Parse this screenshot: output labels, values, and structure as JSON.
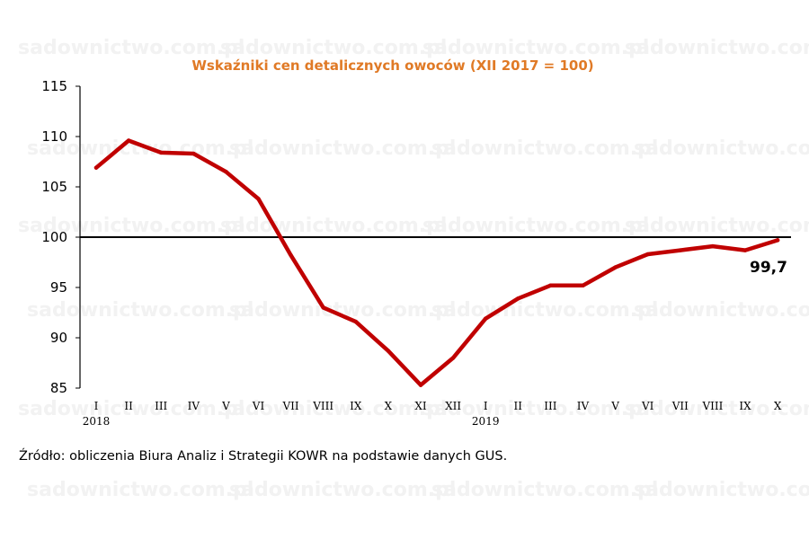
{
  "watermark": "sadownictwo.com.pl",
  "source_note": "Źródło: obliczenia Biura Analiz i Strategii KOWR na podstawie danych GUS.",
  "chart_data": {
    "type": "line",
    "title": "Wskaźniki cen detalicznych owoców (XII 2017 = 100)",
    "xlabel": "",
    "ylabel": "",
    "ylim": [
      85,
      115
    ],
    "yticks": [
      85,
      90,
      95,
      100,
      105,
      110,
      115
    ],
    "reference_line": 100,
    "categories": [
      "I",
      "II",
      "III",
      "IV",
      "V",
      "VI",
      "VII",
      "VIII",
      "IX",
      "X",
      "XI",
      "XII",
      "I",
      "II",
      "III",
      "IV",
      "V",
      "VI",
      "VII",
      "VIII",
      "IX",
      "X"
    ],
    "year_labels": [
      {
        "index": 0,
        "label": "2018"
      },
      {
        "index": 12,
        "label": "2019"
      }
    ],
    "series": [
      {
        "color": "#c00000",
        "values": [
          106.9,
          109.6,
          108.4,
          108.3,
          106.5,
          103.8,
          98.2,
          93.0,
          91.6,
          88.7,
          85.3,
          88.0,
          91.9,
          93.9,
          95.2,
          95.2,
          97.0,
          98.3,
          98.7,
          99.1,
          98.7,
          99.7
        ]
      }
    ],
    "end_label": "99,7",
    "grid": false
  }
}
